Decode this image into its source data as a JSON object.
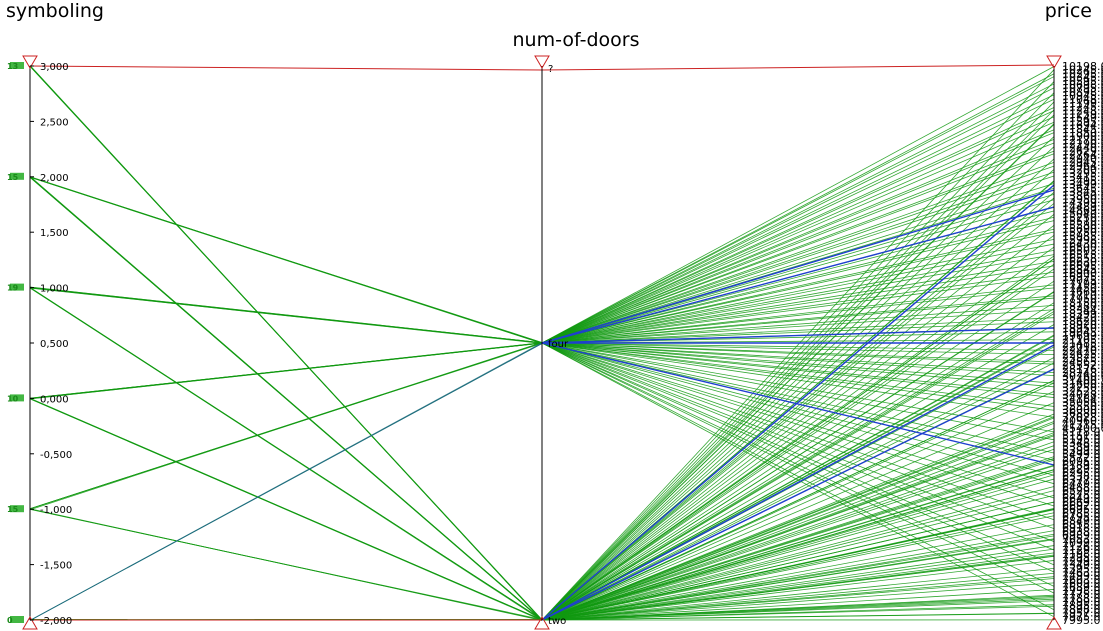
{
  "chart_data": {
    "type": "parallel-coordinates",
    "axes": [
      {
        "name": "symboling",
        "kind": "numeric",
        "range": [
          -2000,
          3000
        ],
        "ticks": [
          3000,
          2500,
          2000,
          1500,
          1000,
          500,
          0,
          -500,
          -1000,
          -1500,
          -2000
        ],
        "tick_labels": [
          "3,000",
          "2,500",
          "2,000",
          "1,500",
          "1,000",
          "0,500",
          "0,000",
          "-0,500",
          "-1,000",
          "-1,500",
          "-2,000"
        ]
      },
      {
        "name": "num-of-doors",
        "kind": "categorical",
        "categories": [
          "?",
          "four",
          "two"
        ]
      },
      {
        "name": "price",
        "kind": "categorical",
        "range_label_top": "10198.0",
        "range_label_bottom": "7995.0",
        "tick_labels": [
          "10198.0",
          "10245.0",
          "10295.0",
          "10345.0",
          "10595.0",
          "10698.0",
          "10795.0",
          "10898.0",
          "10945.0",
          "11048.0",
          "11199.0",
          "11245.0",
          "11248.0",
          "11259.0",
          "11549.0",
          "11595.0",
          "11694.0",
          "11845.0",
          "11850.0",
          "11900.0",
          "12170.0",
          "12290.0",
          "12440.0",
          "12629.0",
          "12764.0",
          "12940.0",
          "12945.0",
          "12964.0",
          "13200.0",
          "13295.0",
          "13415.0",
          "13495.0",
          "13499.0",
          "13645.0",
          "13845.0",
          "13860.0",
          "13950.0",
          "14399.0",
          "14489.0",
          "14869.0",
          "15040.0",
          "15250.0",
          "15510.0",
          "15580.0",
          "15690.0",
          "15750.0",
          "15985.0",
          "15998.0",
          "16430.0",
          "16500.0",
          "16503.0",
          "16515.0",
          "16558.0",
          "16630.0",
          "16695.0",
          "16845.0",
          "16900.0",
          "16925.0",
          "17075.0",
          "17199.0",
          "17450.0",
          "17669.0",
          "17710.0",
          "17950.0",
          "18150.0",
          "18280.0",
          "18344.0",
          "18399.0",
          "18420.0",
          "18620.0",
          "18920.0",
          "18950.0",
          "19045.0",
          "19699.0",
          "21105.0",
          "21485.0",
          "22018.0",
          "22470.0",
          "22625.0",
          "23875.0",
          "24565.0",
          "25552.0",
          "28176.0",
          "28248.0",
          "30760.0",
          "31400.5",
          "31600.0",
          "32250.0",
          "32528.0",
          "34028.0",
          "34184.0",
          "35056.0",
          "35550.0",
          "36000.0",
          "36880.0",
          "37028.0",
          "40960.0",
          "41315.0",
          "45400.0",
          "5118.0",
          "5151.0",
          "5195.0",
          "5348.0",
          "5389.0",
          "5399.0",
          "5499.0",
          "5572.0",
          "6095.0",
          "6189.0",
          "6229.0",
          "6295.0",
          "6338.0",
          "6377.0",
          "6479.0",
          "6488.0",
          "6529.0",
          "6575.0",
          "6649.0",
          "6669.0",
          "6692.0",
          "6695.0",
          "6785.0",
          "6795.0",
          "6849.0",
          "6855.0",
          "6918.0",
          "6938.0",
          "6989.0",
          "7053.0",
          "7099.0",
          "7126.0",
          "7129.0",
          "7198.0",
          "7295.0",
          "7299.0",
          "7349.0",
          "7395.0",
          "7463.0",
          "7499.0",
          "7603.0",
          "7609.0",
          "7689.0",
          "7738.0",
          "7775.0",
          "7788.0",
          "7799.0",
          "7895.0",
          "7898.0",
          "7957.0",
          "7975.0",
          "7995.0"
        ]
      }
    ],
    "count_labels_symboling": [
      "13",
      "15",
      "19",
      "10",
      "15",
      "0",
      "1"
    ],
    "colors": {
      "line_green": "#119911",
      "line_blue": "#1f3fd0",
      "line_teal": "#1a6b7a",
      "axis_marker": "#cc2222"
    },
    "xlabel": "",
    "ylabel": "",
    "title": ""
  }
}
